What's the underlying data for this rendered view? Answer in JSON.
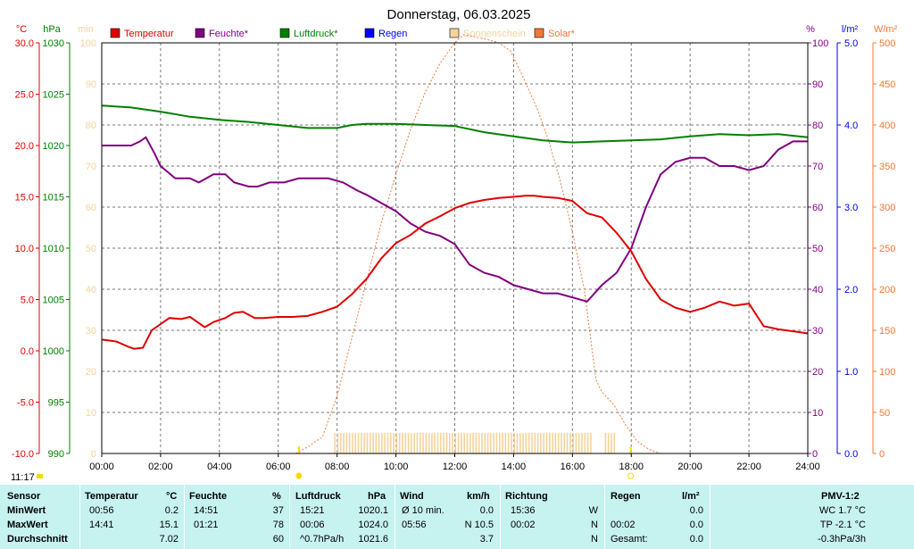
{
  "title": "Donnerstag, 06.03.2025",
  "axes_titles": {
    "temp": "°C",
    "pressure": "hPa",
    "sun": "min",
    "humidity": "%",
    "rain": "l/m²",
    "solar": "W/m²"
  },
  "time_label": "11:17",
  "colors": {
    "temp": "#e00000",
    "humidity": "#800080",
    "pressure": "#008000",
    "rain": "#0000ff",
    "sun": "#f5d39b",
    "solar": "#f07838"
  },
  "chart_data": {
    "type": "line",
    "x_unit": "time of day (hours)",
    "xlim": [
      0,
      24
    ],
    "x_ticks": [
      "00:00",
      "02:00",
      "04:00",
      "06:00",
      "08:00",
      "10:00",
      "12:00",
      "14:00",
      "16:00",
      "18:00",
      "20:00",
      "22:00",
      "24:00"
    ],
    "legend": [
      "Temperatur",
      "Feuchte*",
      "Luftdruck*",
      "Regen",
      "Sonnenschein",
      "Solar*"
    ],
    "axes": {
      "temp": {
        "min": -10,
        "max": 30,
        "ticks": [
          "30.0",
          "25.0",
          "20.0",
          "15.0",
          "10.0",
          "5.0",
          "0.0",
          "-5.0",
          "-10.0"
        ]
      },
      "pressure": {
        "min": 990,
        "max": 1030,
        "ticks": [
          "1030",
          "1025",
          "1020",
          "1015",
          "1010",
          "1005",
          "1000",
          "995",
          "990"
        ]
      },
      "sun": {
        "min": 0,
        "max": 100,
        "ticks": [
          "100",
          "90",
          "80",
          "70",
          "60",
          "50",
          "40",
          "30",
          "20",
          "10",
          "0"
        ]
      },
      "humidity": {
        "min": 0,
        "max": 100,
        "ticks": [
          "100",
          "90",
          "80",
          "70",
          "60",
          "50",
          "40",
          "30",
          "20",
          "10",
          "0"
        ]
      },
      "rain": {
        "min": 0,
        "max": 5,
        "ticks": [
          "5.0",
          "4.0",
          "3.0",
          "2.0",
          "1.0",
          "0.0"
        ]
      },
      "solar": {
        "min": 0,
        "max": 500,
        "ticks": [
          "500",
          "450",
          "400",
          "350",
          "300",
          "250",
          "200",
          "150",
          "100",
          "50",
          "0"
        ]
      }
    },
    "series": [
      {
        "name": "Temperatur",
        "axis": "temp",
        "x": [
          0,
          0.5,
          0.9,
          1.1,
          1.4,
          1.7,
          2.0,
          2.3,
          2.7,
          3.0,
          3.5,
          3.8,
          4.2,
          4.5,
          4.8,
          5.2,
          5.5,
          6.0,
          6.5,
          7.0,
          7.5,
          8.0,
          8.5,
          9.0,
          9.5,
          10.0,
          10.5,
          11.0,
          11.5,
          12.0,
          12.5,
          13.0,
          13.5,
          14.0,
          14.4,
          14.7,
          15.0,
          15.5,
          16.0,
          16.5,
          17.0,
          17.5,
          18.0,
          18.5,
          19.0,
          19.5,
          20.0,
          20.5,
          21.0,
          21.5,
          22.0,
          22.5,
          23.0,
          23.5,
          24.0
        ],
        "y": [
          1.1,
          0.9,
          0.4,
          0.2,
          0.3,
          2.0,
          2.6,
          3.2,
          3.1,
          3.3,
          2.3,
          2.8,
          3.2,
          3.7,
          3.8,
          3.2,
          3.2,
          3.3,
          3.3,
          3.4,
          3.8,
          4.3,
          5.5,
          7.0,
          9.0,
          10.5,
          11.3,
          12.4,
          13.1,
          13.9,
          14.4,
          14.7,
          14.9,
          15.0,
          15.1,
          15.1,
          15.0,
          14.9,
          14.6,
          13.4,
          13.0,
          11.5,
          9.7,
          7.0,
          5.0,
          4.2,
          3.8,
          4.2,
          4.8,
          4.4,
          4.6,
          2.4,
          2.1,
          1.9,
          1.7
        ]
      },
      {
        "name": "Feuchte*",
        "axis": "humidity",
        "x": [
          0,
          0.5,
          1.0,
          1.3,
          1.5,
          1.8,
          2.0,
          2.5,
          3.0,
          3.3,
          3.8,
          4.2,
          4.5,
          5.0,
          5.3,
          5.7,
          6.2,
          6.7,
          7.2,
          7.7,
          8.2,
          8.7,
          9.0,
          9.5,
          10.0,
          10.5,
          11.0,
          11.5,
          12.0,
          12.5,
          13.0,
          13.5,
          14.0,
          14.5,
          15.0,
          15.5,
          16.0,
          16.5,
          17.0,
          17.5,
          18.0,
          18.5,
          19.0,
          19.5,
          20.0,
          20.5,
          21.0,
          21.5,
          22.0,
          22.5,
          23.0,
          23.5,
          24.0
        ],
        "y": [
          75,
          75,
          75,
          76,
          77,
          73,
          70,
          67,
          67,
          66,
          68,
          68,
          66,
          65,
          65,
          66,
          66,
          67,
          67,
          67,
          66,
          64,
          63,
          61,
          59,
          56,
          54,
          53,
          51,
          46,
          44,
          43,
          41,
          40,
          39,
          39,
          38,
          37,
          41,
          44,
          50,
          60,
          68,
          71,
          72,
          72,
          70,
          70,
          69,
          70,
          74,
          76,
          76
        ]
      },
      {
        "name": "Luftdruck*",
        "axis": "pressure",
        "x": [
          0,
          1,
          2,
          3,
          4,
          5,
          6,
          7,
          8,
          8.5,
          9,
          10,
          11,
          12,
          13,
          14,
          15,
          16,
          17,
          18,
          19,
          20,
          21,
          22,
          23,
          24
        ],
        "y": [
          1023.9,
          1023.7,
          1023.3,
          1022.8,
          1022.5,
          1022.3,
          1022.0,
          1021.7,
          1021.7,
          1022.0,
          1022.1,
          1022.1,
          1022.0,
          1021.9,
          1021.3,
          1020.9,
          1020.5,
          1020.3,
          1020.4,
          1020.5,
          1020.6,
          1020.9,
          1021.1,
          1021.0,
          1021.1,
          1020.8
        ]
      },
      {
        "name": "Solar*",
        "axis": "solar",
        "style": "dotted",
        "x": [
          6.6,
          7.0,
          7.5,
          8.0,
          8.5,
          9.0,
          9.5,
          10.0,
          10.5,
          11.0,
          11.5,
          12.0,
          12.3,
          13.0,
          13.5,
          13.9,
          14.3,
          14.8,
          15.2,
          15.6,
          16.0,
          16.4,
          16.8,
          17.0,
          17.4,
          17.8,
          18.2,
          18.6,
          19.0
        ],
        "y": [
          0,
          8,
          20,
          70,
          140,
          210,
          280,
          340,
          395,
          440,
          475,
          500,
          510,
          505,
          500,
          490,
          460,
          420,
          380,
          330,
          270,
          200,
          90,
          75,
          60,
          35,
          15,
          5,
          0
        ]
      }
    ],
    "sunshine_bars": {
      "axis": "sun",
      "from": 7.9,
      "to": 16.6,
      "value": 5,
      "extra": [
        [
          17.1,
          17.5,
          5
        ]
      ]
    },
    "markers": {
      "sunrise_hour": 6.7,
      "sunset_hour": 17.98
    }
  },
  "stats": {
    "headers": {
      "sensor": "Sensor",
      "temp": "Temperatur",
      "temp_unit": "°C",
      "hum": "Feuchte",
      "hum_unit": "%",
      "press": "Luftdruck",
      "press_unit": "hPa",
      "wind": "Wind",
      "wind_unit": "km/h",
      "dir": "Richtung",
      "rain": "Regen",
      "rain_unit": "l/m²",
      "pmv": "PMV-1:2"
    },
    "rows": [
      {
        "label": "MinWert",
        "temp_time": "00:56",
        "temp_val": "0.2",
        "hum_time": "14:51",
        "hum_val": "37",
        "press_time": "15:21",
        "press_val": "1020.1",
        "wind_label": "Ø 10 min.",
        "wind_val": "0.0",
        "dir_time": "15:36",
        "dir_val": "W",
        "rain_time": "",
        "rain_val": "0.0",
        "pmv": "WC 1.7 °C"
      },
      {
        "label": "MaxWert",
        "temp_time": "14:41",
        "temp_val": "15.1",
        "hum_time": "01:21",
        "hum_val": "78",
        "press_time": "00:06",
        "press_val": "1024.0",
        "wind_label": "05:56",
        "wind_val": "N 10.5",
        "dir_time": "00:02",
        "dir_val": "N",
        "rain_time": "00:02",
        "rain_val": "0.0",
        "pmv": "TP -2.1 °C"
      },
      {
        "label": "Durchschnitt",
        "temp_time": "",
        "temp_val": "7.02",
        "hum_time": "",
        "hum_val": "60",
        "press_time": "^0.7hPa/h",
        "press_val": "1021.6",
        "wind_label": "",
        "wind_val": "3.7",
        "dir_time": "",
        "dir_val": "N",
        "rain_time": "Gesamt:",
        "rain_val": "0.0",
        "pmv": "-0.3hPa/3h"
      }
    ]
  }
}
